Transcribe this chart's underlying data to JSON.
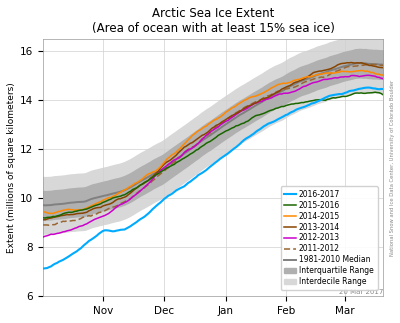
{
  "title_line1": "Arctic Sea Ice Extent",
  "title_line2": "(Area of ocean with at least 15% sea ice)",
  "ylabel": "Extent (millions of square kilometers)",
  "ylim": [
    6,
    16.5
  ],
  "yticks": [
    6,
    8,
    10,
    12,
    14,
    16
  ],
  "xtick_labels": [
    "Nov",
    "Dec",
    "Jan",
    "Feb",
    "Mar"
  ],
  "watermark": "National Snow and Ice Data Center, University of Colorado Boulder",
  "date_label": "20 Mar 2017",
  "background_color": "#ffffff",
  "line_colors": {
    "2016-2017": "#00aaff",
    "2015-2016": "#1a6600",
    "2014-2015": "#ff8800",
    "2013-2014": "#884400",
    "2012-2013": "#cc00cc",
    "2011-2012": "#996633",
    "median": "#808080"
  },
  "shading": {
    "interquartile": "#b0b0b0",
    "interdecile": "#d8d8d8"
  },
  "n_points": 172
}
